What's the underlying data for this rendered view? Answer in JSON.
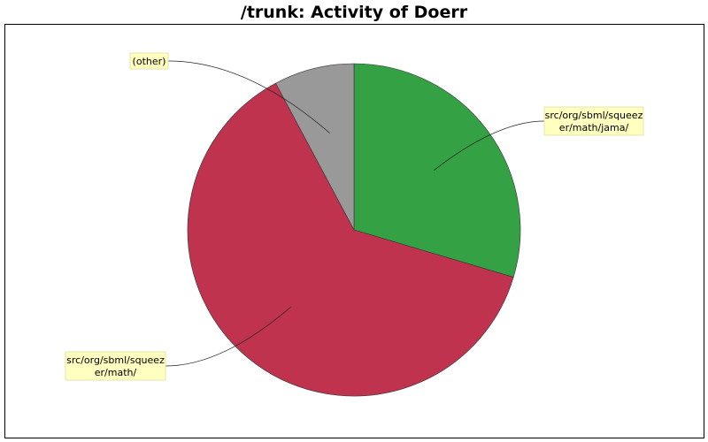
{
  "chart_data": {
    "type": "pie",
    "title": "/trunk: Activity of Doerr",
    "slices": [
      {
        "label": "src/org/sbml/squeezer/math/jama/",
        "label_lines": [
          "src/org/sbml/squeez",
          "er/math/jama/"
        ],
        "value": 29.6,
        "color": "#35a145",
        "label_side": "right"
      },
      {
        "label": "src/org/sbml/squeezer/math/",
        "label_lines": [
          "src/org/sbml/squeez",
          "er/math/"
        ],
        "value": 62.6,
        "color": "#bf334e",
        "label_side": "left"
      },
      {
        "label": "(other)",
        "label_lines": [
          "(other)"
        ],
        "value": 7.8,
        "color": "#999999",
        "label_side": "left"
      }
    ],
    "start_angle_deg": 0,
    "direction": "clockwise",
    "label_box_color": "#ffffc0",
    "legend": "none"
  }
}
